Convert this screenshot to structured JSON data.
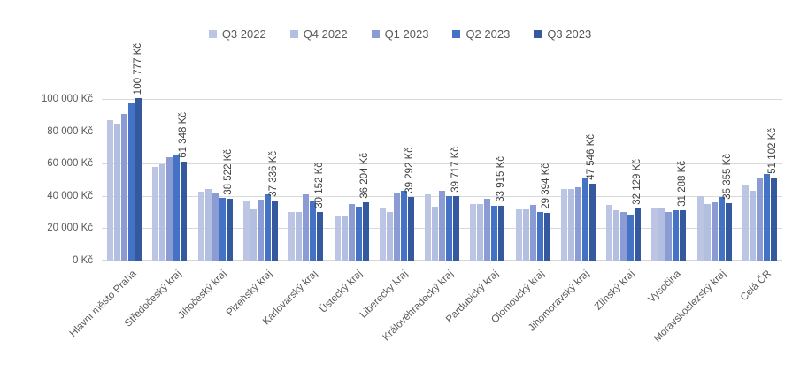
{
  "chart_data": {
    "type": "bar",
    "title": "",
    "unit": "Kč",
    "legend_position": "top",
    "grid": true,
    "categories": [
      "Hlavní město Praha",
      "Středočeský kraj",
      "Jihočeský kraj",
      "Plzeňský kraj",
      "Karlovarský kraj",
      "Ústecký kraj",
      "Liberecký kraj",
      "Královéhradecký kraj",
      "Pardubický kraj",
      "Olomoucký kraj",
      "Jihomoravský kraj",
      "Zlínský kraj",
      "Vysočina",
      "Moravskoslezský kraj",
      "Celá ČR"
    ],
    "series": [
      {
        "name": "Q3 2022",
        "color": "#bcc5e4",
        "values": [
          87000,
          58100,
          42800,
          36700,
          30200,
          27600,
          32300,
          41000,
          34800,
          31500,
          44200,
          34200,
          33000,
          39800,
          47100
        ]
      },
      {
        "name": "Q4 2022",
        "color": "#b3bfe1",
        "values": [
          84600,
          59300,
          44200,
          31500,
          30200,
          27500,
          29900,
          33600,
          34800,
          31500,
          44000,
          31400,
          32200,
          35200,
          43000
        ]
      },
      {
        "name": "Q1 2023",
        "color": "#8b9cd4",
        "values": [
          90600,
          64200,
          41600,
          37600,
          41000,
          35200,
          41800,
          43400,
          38500,
          34300,
          45200,
          30200,
          30100,
          35800,
          50600
        ]
      },
      {
        "name": "Q2 2023",
        "color": "#4472c4",
        "values": [
          97100,
          65600,
          38600,
          41000,
          37400,
          33400,
          43000,
          39800,
          34000,
          29800,
          51200,
          28500,
          31300,
          39600,
          53600
        ]
      },
      {
        "name": "Q3 2023",
        "color": "#35599e",
        "values": [
          100777,
          61348,
          38522,
          37336,
          30152,
          36204,
          39292,
          39717,
          33915,
          29394,
          47546,
          32129,
          31288,
          35355,
          51102
        ]
      }
    ],
    "data_labels": [
      "100 777 Kč",
      "61 348 Kč",
      "38 522 Kč",
      "37 336 Kč",
      "30 152 Kč",
      "36 204 Kč",
      "39 292 Kč",
      "39 717 Kč",
      "33 915 Kč",
      "29 394 Kč",
      "47 546 Kč",
      "32 129 Kč",
      "31 288 Kč",
      "35 355 Kč",
      "51 102 Kč"
    ],
    "y_axis": {
      "ticks": [
        "0 Kč",
        "20 000 Kč",
        "40 000 Kč",
        "60 000 Kč",
        "80 000 Kč",
        "100 000 Kč"
      ],
      "tick_values": [
        0,
        20000,
        40000,
        60000,
        80000,
        100000
      ],
      "max": 100000
    }
  },
  "colors": {
    "gridline": "#d9d9d9",
    "axis_line": "#d6d6d6",
    "axis_text": "#595959",
    "data_label_text": "#404040",
    "background": "#ffffff"
  }
}
